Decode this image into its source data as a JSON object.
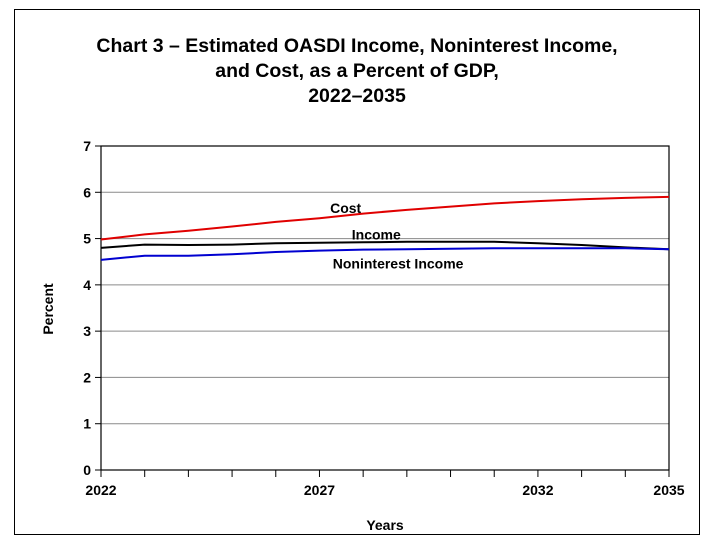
{
  "chart_data": {
    "type": "line",
    "title_lines": [
      "Chart 3 – Estimated OASDI Income, Noninterest Income,",
      "and Cost, as a Percent of GDP,",
      "2022–2035"
    ],
    "xlabel": "Years",
    "ylabel": "Percent",
    "x": [
      2022,
      2023,
      2024,
      2025,
      2026,
      2027,
      2028,
      2029,
      2030,
      2031,
      2032,
      2033,
      2034,
      2035
    ],
    "xlim": [
      2022,
      2035
    ],
    "ylim": [
      0,
      7
    ],
    "x_ticks": [
      2022,
      2023,
      2024,
      2025,
      2026,
      2027,
      2028,
      2029,
      2030,
      2031,
      2032,
      2033,
      2034,
      2035
    ],
    "x_tick_labels": [
      {
        "value": 2022,
        "label": "2022"
      },
      {
        "value": 2027,
        "label": "2027"
      },
      {
        "value": 2032,
        "label": "2032"
      },
      {
        "value": 2035,
        "label": "2035"
      }
    ],
    "y_ticks": [
      {
        "value": 0,
        "label": "0"
      },
      {
        "value": 1,
        "label": "1"
      },
      {
        "value": 2,
        "label": "2"
      },
      {
        "value": 3,
        "label": "3"
      },
      {
        "value": 4,
        "label": "4"
      },
      {
        "value": 5,
        "label": "5"
      },
      {
        "value": 6,
        "label": "6"
      },
      {
        "value": 7,
        "label": "7"
      }
    ],
    "grid": "horizontal",
    "series": [
      {
        "name": "Cost",
        "color": "#e00000",
        "values": [
          4.98,
          5.09,
          5.17,
          5.26,
          5.36,
          5.44,
          5.54,
          5.62,
          5.69,
          5.76,
          5.81,
          5.85,
          5.88,
          5.9
        ],
        "label_at": [
          2027.6,
          5.55
        ]
      },
      {
        "name": "Income",
        "color": "#000000",
        "values": [
          4.8,
          4.87,
          4.86,
          4.87,
          4.9,
          4.91,
          4.92,
          4.93,
          4.93,
          4.93,
          4.9,
          4.86,
          4.81,
          4.77
        ],
        "label_at": [
          2028.3,
          4.98
        ]
      },
      {
        "name": "Noninterest Income",
        "color": "#0000d0",
        "values": [
          4.54,
          4.63,
          4.63,
          4.66,
          4.71,
          4.74,
          4.76,
          4.77,
          4.78,
          4.79,
          4.79,
          4.79,
          4.79,
          4.77
        ],
        "label_at": [
          2028.8,
          4.35
        ]
      }
    ]
  }
}
